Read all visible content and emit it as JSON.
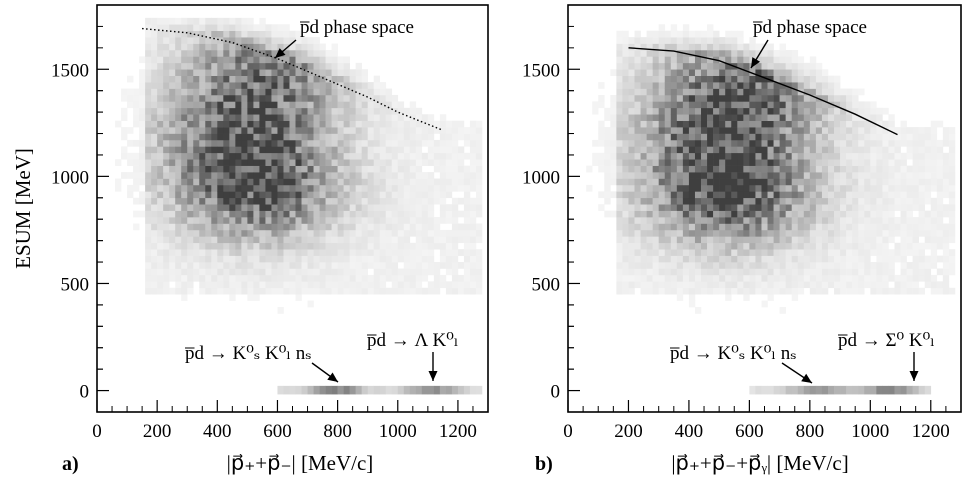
{
  "chart_data": [
    {
      "type": "heatmap",
      "panel_label": "a)",
      "title": "",
      "xlabel": "|p⃗₊+p⃗₋|  [MeV/c]",
      "ylabel": "ESUM [MeV]",
      "xlim": [
        0,
        1300
      ],
      "ylim": [
        -100,
        1800
      ],
      "x_ticks": [
        "0",
        "200",
        "400",
        "600",
        "800",
        "1000",
        "1200"
      ],
      "y_ticks": [
        "0",
        "500",
        "1000",
        "1500"
      ],
      "grid": false,
      "colormap": "grayscale",
      "density_clusters": [
        {
          "x": 520,
          "y": 930,
          "weight": 1.0
        },
        {
          "x": 470,
          "y": 1220,
          "weight": 0.75
        },
        {
          "x": 560,
          "y": 1510,
          "weight": 0.65
        }
      ],
      "kinematic_boundary": {
        "style": "dotted",
        "points": [
          [
            150,
            1690
          ],
          [
            300,
            1670
          ],
          [
            450,
            1625
          ],
          [
            600,
            1550
          ],
          [
            750,
            1460
          ],
          [
            900,
            1370
          ],
          [
            1000,
            1300
          ],
          [
            1150,
            1215
          ]
        ]
      },
      "band_at_zero": {
        "x_range": [
          600,
          1280
        ],
        "peaks": [
          [
            780,
            0.55
          ],
          [
            1100,
            0.45
          ]
        ]
      },
      "annotations": [
        {
          "text": "p̅d phase space",
          "point_to": [
            620,
            1560
          ]
        },
        {
          "text": "p̅d → K⁰ₛ K⁰ₗ nₛ",
          "point_to": [
            800,
            30
          ]
        },
        {
          "text": "p̅d → Λ K⁰ₗ",
          "point_to": [
            1100,
            30
          ]
        }
      ]
    },
    {
      "type": "heatmap",
      "panel_label": "b)",
      "title": "",
      "xlabel": "|p⃗₊+p⃗₋+p⃗ᵧ|  [MeV/c]",
      "ylabel": "",
      "xlim": [
        0,
        1300
      ],
      "ylim": [
        -100,
        1800
      ],
      "x_ticks": [
        "0",
        "200",
        "400",
        "600",
        "800",
        "1000",
        "1200"
      ],
      "y_ticks": [
        "0",
        "500",
        "1000",
        "1500"
      ],
      "grid": false,
      "colormap": "grayscale",
      "density_clusters": [
        {
          "x": 520,
          "y": 900,
          "weight": 1.0
        },
        {
          "x": 500,
          "y": 1200,
          "weight": 0.8
        },
        {
          "x": 580,
          "y": 1450,
          "weight": 0.7
        }
      ],
      "kinematic_boundary": {
        "style": "solid",
        "points": [
          [
            200,
            1600
          ],
          [
            350,
            1585
          ],
          [
            500,
            1540
          ],
          [
            650,
            1460
          ],
          [
            800,
            1380
          ],
          [
            950,
            1290
          ],
          [
            1090,
            1195
          ]
        ]
      },
      "band_at_zero": {
        "x_range": [
          600,
          1200
        ],
        "peaks": [
          [
            820,
            0.5
          ],
          [
            1050,
            0.5
          ]
        ]
      },
      "annotations": [
        {
          "text": "p̅d phase space",
          "point_to": [
            500,
            1530
          ]
        },
        {
          "text": "p̅d → K⁰ₛ K⁰ₗ nₛ",
          "point_to": [
            820,
            30
          ]
        },
        {
          "text": "p̅d → Σ⁰ K⁰ₗ",
          "point_to": [
            1050,
            30
          ]
        }
      ]
    }
  ]
}
